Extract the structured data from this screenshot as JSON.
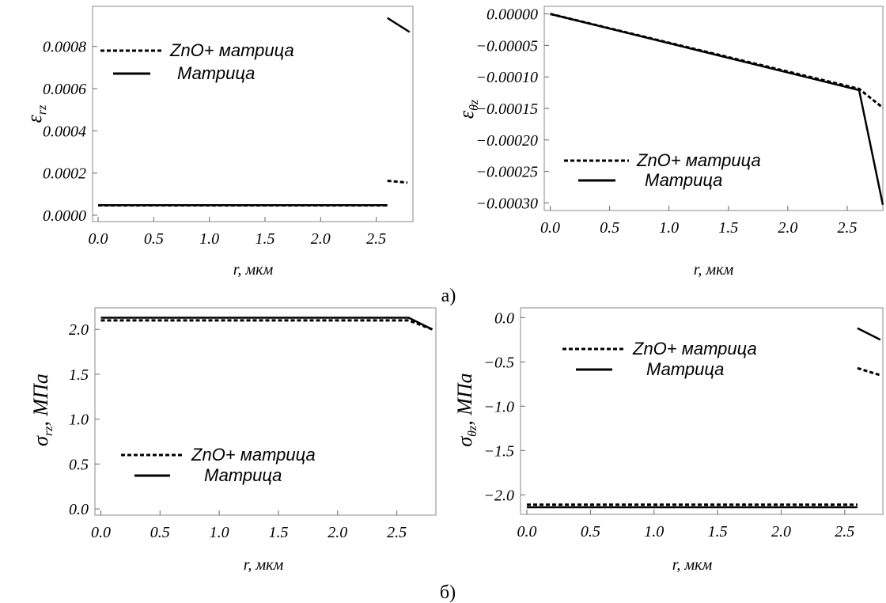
{
  "captions": {
    "top": "а)",
    "bottom": "б)"
  },
  "chart_data": [
    {
      "type": "line",
      "xlabel": "r, мкм",
      "ylabel": "ε_rz",
      "ylabel_main": "ε",
      "ylabel_sub": "rz",
      "xlim": [
        -0.05,
        2.83
      ],
      "ylim": [
        -3e-05,
        0.00099
      ],
      "xticks": [
        0,
        0.5,
        1,
        1.5,
        2,
        2.5
      ],
      "xtick_labels": [
        "0.0",
        "0.5",
        "1.0",
        "1.5",
        "2.0",
        "2.5"
      ],
      "yticks": [
        0,
        0.0002,
        0.0004,
        0.0006,
        0.0008
      ],
      "ytick_labels": [
        "0.0000",
        "0.0002",
        "0.0004",
        "0.0006",
        "0.0008"
      ],
      "legend_position": "upper-left",
      "series": [
        {
          "name": "ZnO+ матрица",
          "style": "dashed",
          "segments": [
            [
              [
                0,
                4.7e-05
              ],
              [
                2.6,
                4.7e-05
              ]
            ],
            [
              [
                2.6,
                0.000163
              ],
              [
                2.78,
                0.000155
              ]
            ]
          ]
        },
        {
          "name": "Матрица",
          "style": "solid",
          "segments": [
            [
              [
                0,
                4.8e-05
              ],
              [
                2.6,
                4.8e-05
              ]
            ],
            [
              [
                2.6,
                0.000935
              ],
              [
                2.8,
                0.000868
              ]
            ]
          ]
        }
      ]
    },
    {
      "type": "line",
      "xlabel": "r, мкм",
      "ylabel": "ε_θz",
      "ylabel_main": "ε",
      "ylabel_sub": "θz",
      "xlim": [
        -0.05,
        2.8
      ],
      "ylim": [
        -0.000312,
        1.2e-05
      ],
      "xticks": [
        0,
        0.5,
        1,
        1.5,
        2,
        2.5
      ],
      "xtick_labels": [
        "0.0",
        "0.5",
        "1.0",
        "1.5",
        "2.0",
        "2.5"
      ],
      "yticks": [
        0,
        -5e-05,
        -0.0001,
        -0.00015,
        -0.0002,
        -0.00025,
        -0.0003
      ],
      "ytick_labels": [
        "0.00000",
        "−0.00005",
        "−0.00010",
        "−0.00015",
        "−0.00020",
        "−0.00025",
        "−0.00030"
      ],
      "legend_position": "lower-left",
      "series": [
        {
          "name": "ZnO+ матрица",
          "style": "dashed",
          "segments": [
            [
              [
                0,
                0
              ],
              [
                2.6,
                -0.000119
              ],
              [
                2.8,
                -0.000149
              ]
            ]
          ]
        },
        {
          "name": "Матрица",
          "style": "solid",
          "segments": [
            [
              [
                0,
                0
              ],
              [
                2.6,
                -0.000121
              ],
              [
                2.8,
                -0.000303
              ]
            ]
          ]
        }
      ]
    },
    {
      "type": "line",
      "xlabel": "r, мкм",
      "ylabel": "σ_rz, МПа",
      "ylabel_main": "σ",
      "ylabel_sub": "rz",
      "ylabel_rest": ", МПа",
      "xlim": [
        -0.05,
        2.83
      ],
      "ylim": [
        -0.07,
        2.24
      ],
      "xticks": [
        0,
        0.5,
        1,
        1.5,
        2,
        2.5
      ],
      "xtick_labels": [
        "0.0",
        "0.5",
        "1.0",
        "1.5",
        "2.0",
        "2.5"
      ],
      "yticks": [
        0,
        0.5,
        1,
        1.5,
        2
      ],
      "ytick_labels": [
        "0.0",
        "0.5",
        "1.0",
        "1.5",
        "2.0"
      ],
      "legend_position": "lower-left",
      "series": [
        {
          "name": "ZnO+ матрица",
          "style": "dashed",
          "segments": [
            [
              [
                0,
                2.1
              ],
              [
                2.6,
                2.1
              ],
              [
                2.8,
                2.0
              ]
            ]
          ]
        },
        {
          "name": "Матрица",
          "style": "solid",
          "segments": [
            [
              [
                0,
                2.13
              ],
              [
                2.6,
                2.13
              ],
              [
                2.8,
                2.0
              ]
            ]
          ]
        }
      ]
    },
    {
      "type": "line",
      "xlabel": "r, мкм",
      "ylabel": "σ_θz, МПа",
      "ylabel_main": "σ",
      "ylabel_sub": "θz",
      "ylabel_rest": ", МПа",
      "xlim": [
        -0.05,
        2.8
      ],
      "ylim": [
        -2.22,
        0.11
      ],
      "xticks": [
        0,
        0.5,
        1,
        1.5,
        2,
        2.5
      ],
      "xtick_labels": [
        "0.0",
        "0.5",
        "1.0",
        "1.5",
        "2.0",
        "2.5"
      ],
      "yticks": [
        0,
        -0.5,
        -1,
        -1.5,
        -2
      ],
      "ytick_labels": [
        "0.0",
        "−0.5",
        "−1.0",
        "−1.5",
        "−2.0"
      ],
      "legend_position": "upper-left",
      "series": [
        {
          "name": "ZnO+ матрица",
          "style": "dashed",
          "segments": [
            [
              [
                0,
                -2.11
              ],
              [
                2.6,
                -2.11
              ]
            ],
            [
              [
                2.6,
                -0.57
              ],
              [
                2.78,
                -0.65
              ]
            ]
          ]
        },
        {
          "name": "Матрица",
          "style": "solid",
          "segments": [
            [
              [
                0,
                -2.14
              ],
              [
                2.6,
                -2.14
              ]
            ],
            [
              [
                2.6,
                -0.12
              ],
              [
                2.78,
                -0.25
              ]
            ]
          ]
        }
      ]
    }
  ]
}
